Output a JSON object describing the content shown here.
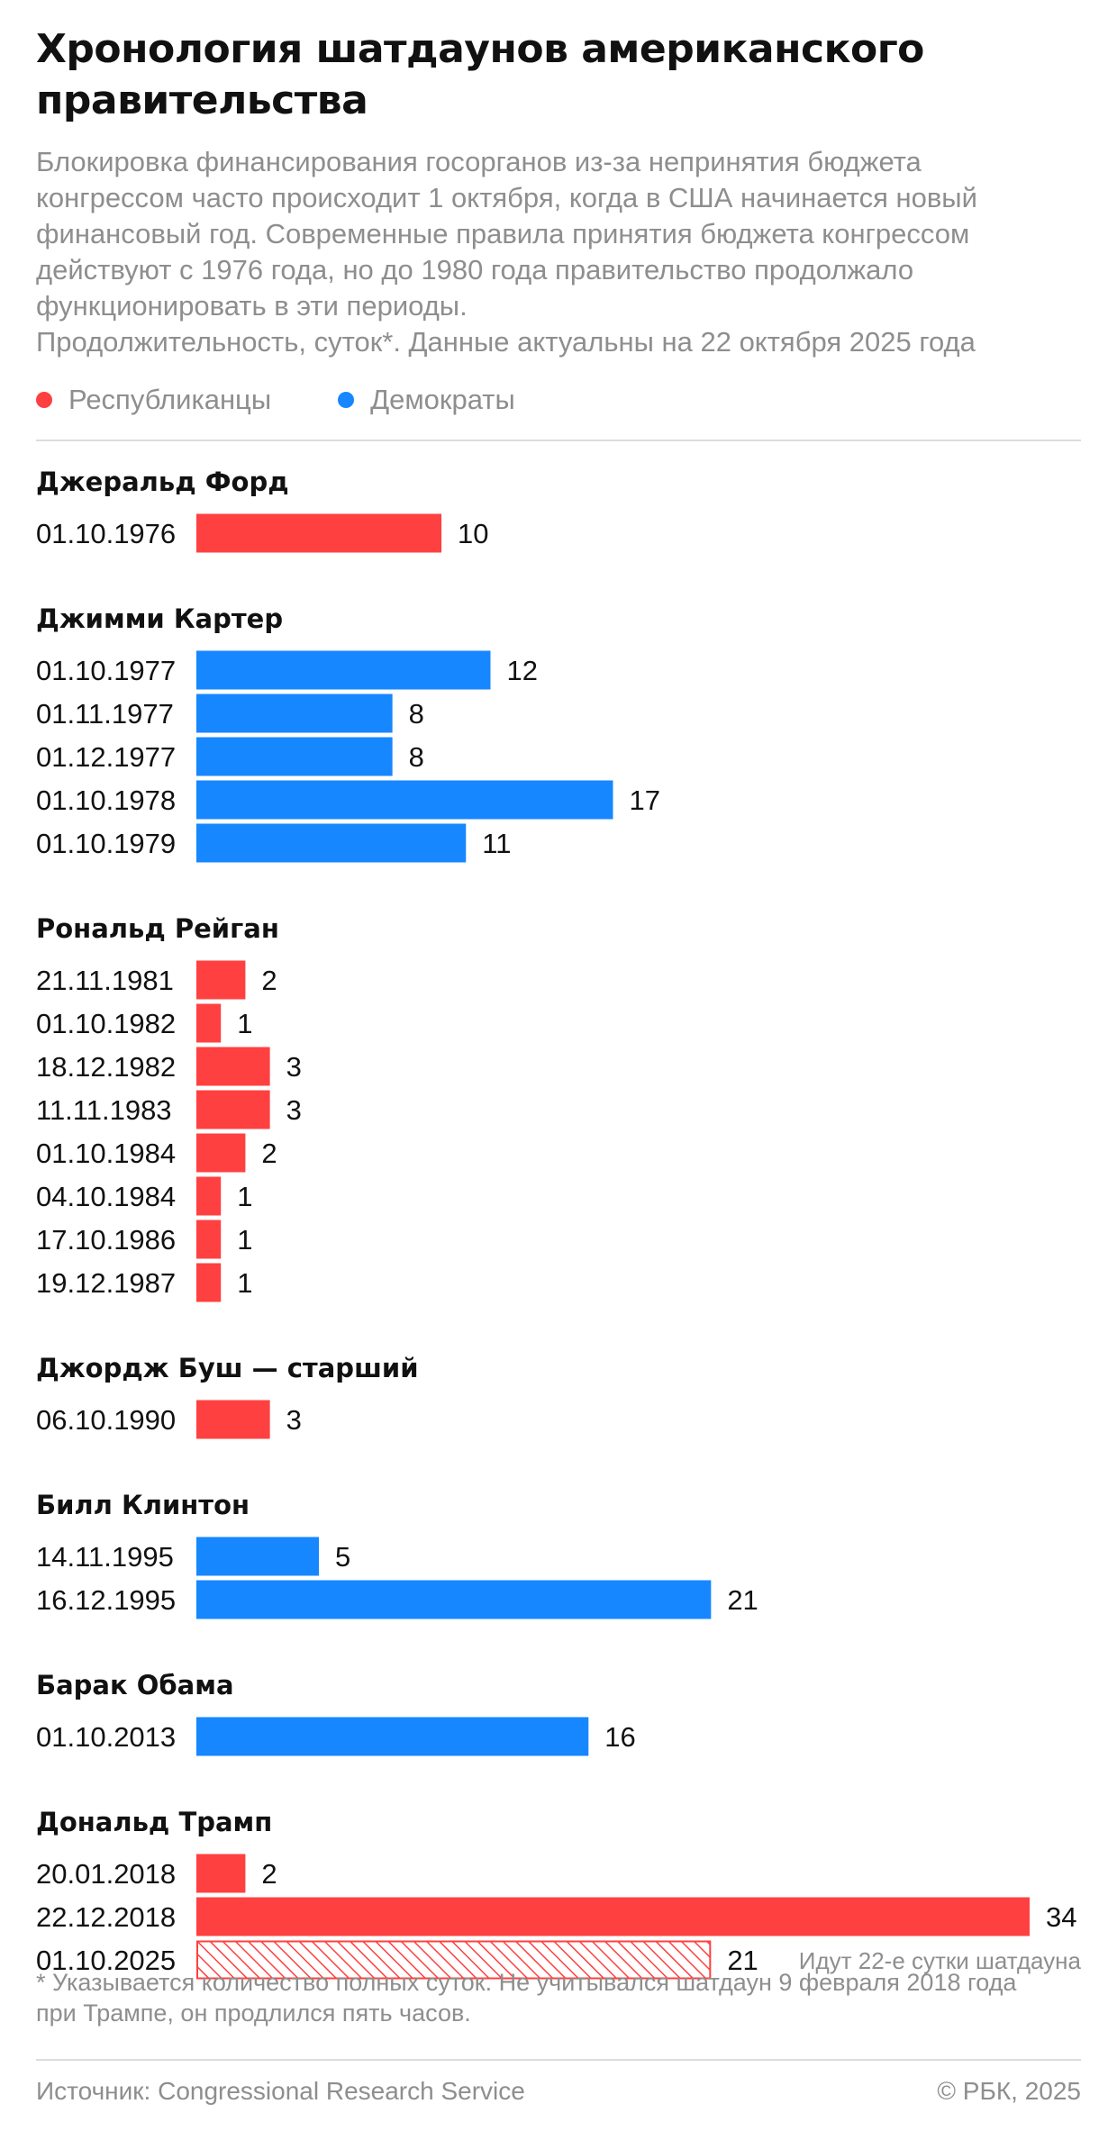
{
  "title": "Хронология шатдаунов американского правительства",
  "subtitle_lines": [
    "Блокировка финансирования госорганов из-за непринятия бюджета",
    "конгрессом часто происходит 1 октября, когда в США начинается новый",
    "финансовый год. Современные правила принятия бюджета конгрессом",
    "действуют с 1976 года, но до 1980 года правительство продолжало",
    "функционировать в эти периоды.",
    "Продолжительность, суток*. Данные актуальны на 22 октября 2025 года"
  ],
  "legend": [
    {
      "label": "Республиканцы",
      "color": "#ff4040"
    },
    {
      "label": "Демократы",
      "color": "#1687ff"
    }
  ],
  "colors": {
    "republican": "#ff4040",
    "democrat": "#1687ff",
    "ongoing": "#ff4040"
  },
  "chart_data": {
    "type": "bar",
    "orientation": "horizontal",
    "unit": "суток",
    "xlim": [
      0,
      34
    ],
    "grid": false,
    "groups": [
      {
        "name": "Джеральд Форд",
        "party": "republican",
        "bars": [
          {
            "date": "01.10.1976",
            "value": 10
          }
        ]
      },
      {
        "name": "Джимми Картер",
        "party": "democrat",
        "bars": [
          {
            "date": "01.10.1977",
            "value": 12
          },
          {
            "date": "01.11.1977",
            "value": 8
          },
          {
            "date": "01.12.1977",
            "value": 8
          },
          {
            "date": "01.10.1978",
            "value": 17
          },
          {
            "date": "01.10.1979",
            "value": 11
          }
        ]
      },
      {
        "name": "Рональд Рейган",
        "party": "republican",
        "bars": [
          {
            "date": "21.11.1981",
            "value": 2
          },
          {
            "date": "01.10.1982",
            "value": 1
          },
          {
            "date": "18.12.1982",
            "value": 3
          },
          {
            "date": "11.11.1983",
            "value": 3
          },
          {
            "date": "01.10.1984",
            "value": 2
          },
          {
            "date": "04.10.1984",
            "value": 1
          },
          {
            "date": "17.10.1986",
            "value": 1
          },
          {
            "date": "19.12.1987",
            "value": 1
          }
        ]
      },
      {
        "name": "Джордж Буш — старший",
        "party": "republican",
        "bars": [
          {
            "date": "06.10.1990",
            "value": 3
          }
        ]
      },
      {
        "name": "Билл Клинтон",
        "party": "democrat",
        "bars": [
          {
            "date": "14.11.1995",
            "value": 5
          },
          {
            "date": "16.12.1995",
            "value": 21
          }
        ]
      },
      {
        "name": "Барак Обама",
        "party": "democrat",
        "bars": [
          {
            "date": "01.10.2013",
            "value": 16
          }
        ]
      },
      {
        "name": "Дональд Трамп",
        "party": "republican",
        "bars": [
          {
            "date": "20.01.2018",
            "value": 2
          },
          {
            "date": "22.12.2018",
            "value": 34
          },
          {
            "date": "01.10.2025",
            "value": 21,
            "ongoing": true,
            "note": "Идут 22-е сутки шатдауна"
          }
        ]
      }
    ]
  },
  "footnote_lines": [
    "* Указывается количество полных суток. Не учитывался шатдаун 9 февраля 2018 года",
    "при Трампе, он продлился пять часов."
  ],
  "source": "Источник: Congressional Research Service",
  "copyright": "© РБК, 2025"
}
